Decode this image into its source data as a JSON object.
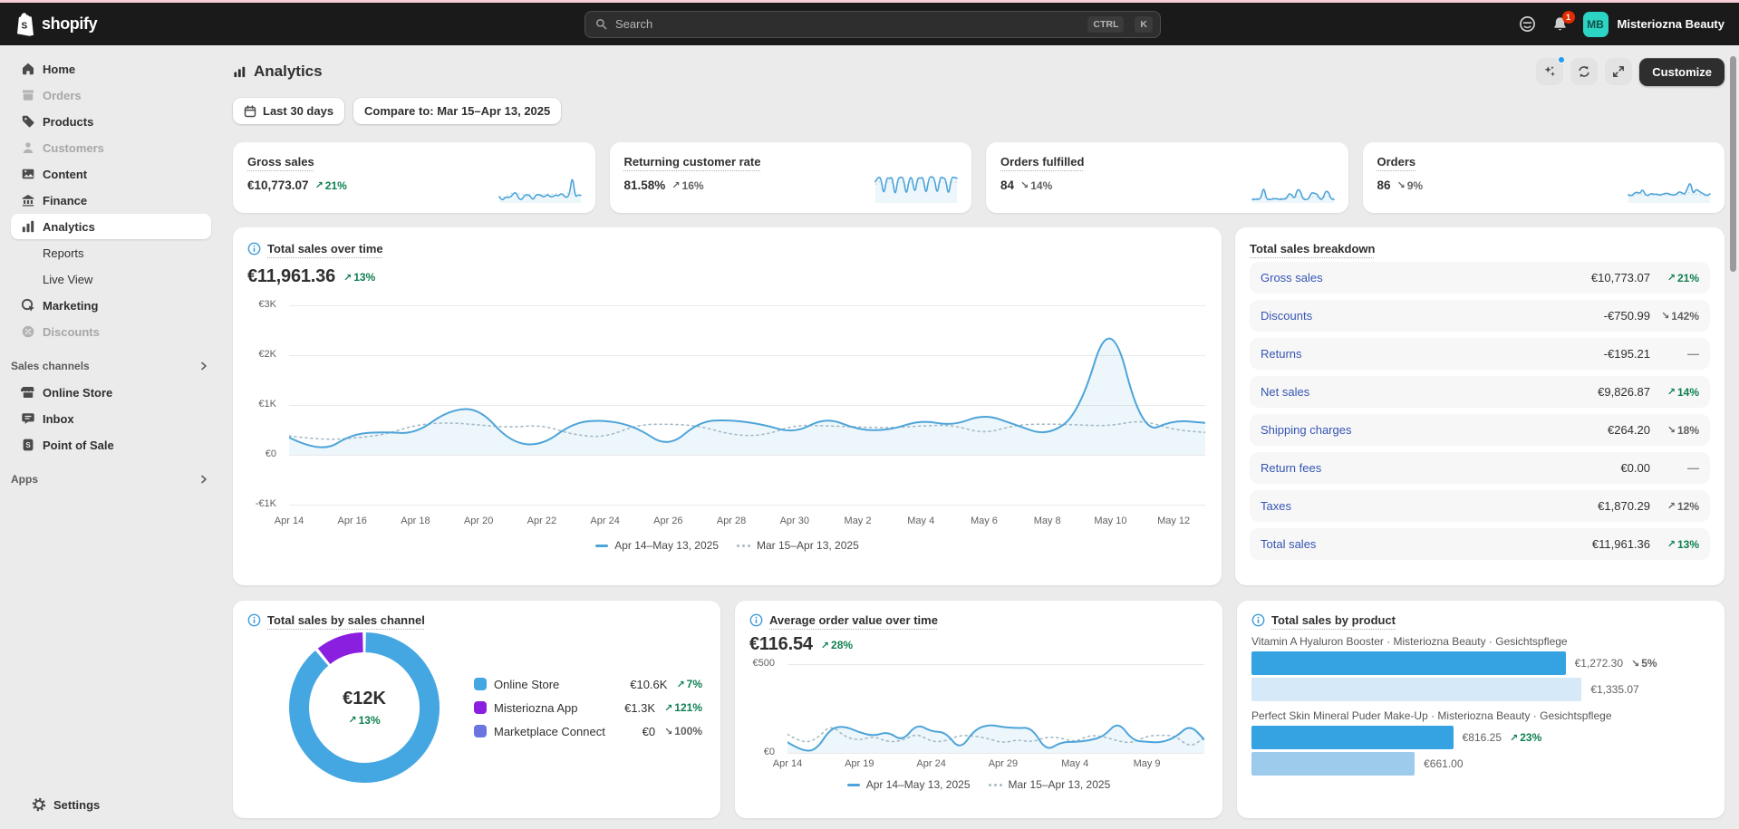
{
  "colors": {
    "topbar_bg": "#1a1a1a",
    "page_bg": "#ebebeb",
    "accent_teal": "#2bd4c3",
    "badge_red": "#e32c00",
    "chart_blue": "#4da4d9",
    "chart_area": "rgba(77,164,217,0.10)",
    "prev_line": "#a4bac6",
    "spark_prev": "#bcd9ec",
    "green": "#0e8050",
    "neutral": "#616161",
    "link_blue": "#3655b3",
    "notify_dot_blue": "#1f9bf0",
    "donut_blue": "#45a7e2",
    "donut_purple": "#8a1fe0",
    "donut_periwinkle": "#6b74e0",
    "bar_current": "#35a2e2",
    "bar_prev_pale": "#d6e9f8",
    "bar_prev_mid": "#9dcbec"
  },
  "topbar": {
    "logo_text": "shopify",
    "search_placeholder": "Search",
    "shortcut_ctrl": "CTRL",
    "shortcut_k": "K",
    "notification_count": "1",
    "avatar_initials": "MB",
    "store_name": "Misteriozna Beauty"
  },
  "sidebar": {
    "items": [
      {
        "label": "Home",
        "icon": "home-icon",
        "state": "default"
      },
      {
        "label": "Orders",
        "icon": "orders-icon",
        "state": "disabled"
      },
      {
        "label": "Products",
        "icon": "products-icon",
        "state": "default"
      },
      {
        "label": "Customers",
        "icon": "customers-icon",
        "state": "disabled"
      },
      {
        "label": "Content",
        "icon": "content-icon",
        "state": "default"
      },
      {
        "label": "Finance",
        "icon": "finance-icon",
        "state": "default"
      },
      {
        "label": "Analytics",
        "icon": "analytics-icon",
        "state": "active"
      },
      {
        "label": "Reports",
        "sub": true,
        "state": "default"
      },
      {
        "label": "Live View",
        "sub": true,
        "state": "default"
      },
      {
        "label": "Marketing",
        "icon": "marketing-icon",
        "state": "default"
      },
      {
        "label": "Discounts",
        "icon": "discounts-icon",
        "state": "disabled"
      }
    ],
    "sales_channels_header": "Sales channels",
    "channels": [
      {
        "label": "Online Store",
        "icon": "online-store-icon"
      },
      {
        "label": "Inbox",
        "icon": "inbox-icon"
      },
      {
        "label": "Point of Sale",
        "icon": "point-of-sale-icon"
      }
    ],
    "apps_header": "Apps",
    "settings_label": "Settings"
  },
  "page": {
    "title": "Analytics",
    "customize_label": "Customize",
    "date_filter": "Last 30 days",
    "compare_filter": "Compare to: Mar 15–Apr 13, 2025"
  },
  "kpis": [
    {
      "label": "Gross sales",
      "value": "€10,773.07",
      "delta": "21%",
      "direction": "up",
      "tone": "positive",
      "spark": [
        18,
        4,
        16,
        17,
        16,
        30,
        33,
        10,
        8,
        24,
        26,
        21,
        6,
        25,
        26,
        23,
        16,
        27,
        19,
        18,
        25,
        21,
        30,
        22,
        14,
        28,
        95,
        16,
        25,
        23
      ],
      "spark_prev": [
        20,
        16,
        18,
        22,
        30,
        32,
        30,
        28,
        30,
        20,
        18,
        30,
        31,
        29,
        20,
        19,
        30,
        29,
        28,
        27,
        29,
        30,
        21,
        30,
        31,
        30,
        29,
        35,
        25,
        22
      ]
    },
    {
      "label": "Returning customer rate",
      "value": "81.58%",
      "delta": "16%",
      "direction": "up",
      "tone": "neutral",
      "spark": [
        70,
        88,
        82,
        20,
        85,
        80,
        88,
        15,
        82,
        86,
        84,
        18,
        80,
        88,
        25,
        84,
        82,
        86,
        20,
        84,
        88,
        82,
        22,
        86,
        84,
        80,
        18,
        84,
        86,
        82
      ],
      "spark_prev": [
        60,
        70,
        68,
        50,
        70,
        66,
        70,
        45,
        68,
        70,
        69,
        48,
        66,
        70,
        52,
        69,
        68,
        70,
        48,
        69,
        70,
        68,
        50,
        70,
        69,
        66,
        48,
        69,
        70,
        68
      ]
    },
    {
      "label": "Orders fulfilled",
      "value": "84",
      "delta": "14%",
      "direction": "down",
      "tone": "neutral",
      "spark": [
        8,
        10,
        9,
        12,
        55,
        10,
        8,
        10,
        12,
        10,
        9,
        11,
        10,
        30,
        25,
        10,
        45,
        40,
        10,
        8,
        10,
        33,
        30,
        28,
        10,
        9,
        38,
        36,
        10,
        9
      ],
      "spark_prev": [
        12,
        14,
        13,
        15,
        20,
        14,
        12,
        14,
        15,
        14,
        13,
        14,
        14,
        18,
        17,
        14,
        20,
        19,
        14,
        12,
        14,
        18,
        17,
        17,
        14,
        13,
        18,
        18,
        14,
        13
      ]
    },
    {
      "label": "Orders",
      "value": "86",
      "delta": "9%",
      "direction": "down",
      "tone": "neutral",
      "spark": [
        25,
        20,
        30,
        35,
        28,
        45,
        25,
        22,
        30,
        26,
        28,
        24,
        26,
        30,
        30,
        26,
        24,
        26,
        36,
        32,
        26,
        48,
        70,
        26,
        45,
        38,
        32,
        26,
        22,
        28
      ],
      "spark_prev": [
        22,
        20,
        24,
        26,
        24,
        30,
        24,
        22,
        25,
        23,
        24,
        22,
        23,
        25,
        25,
        23,
        22,
        23,
        27,
        25,
        23,
        30,
        34,
        23,
        28,
        26,
        24,
        23,
        21,
        23
      ]
    }
  ],
  "legend_periods": [
    {
      "style": "solid",
      "label": "Apr 14–May 13, 2025"
    },
    {
      "style": "dotted",
      "label": "Mar 15–Apr 13, 2025"
    }
  ],
  "chart_data": [
    {
      "id": "total_sales_over_time",
      "type": "line",
      "title": "Total sales over time",
      "value": "€11,961.36",
      "delta": "13%",
      "direction": "up",
      "tone": "positive",
      "ylim": [
        -1000,
        3000
      ],
      "zero_frac": 0.75,
      "xtick_step": 2,
      "yticks": [
        "€3K",
        "€2K",
        "€1K",
        "€0",
        "-€1K"
      ],
      "xticks": [
        "Apr 14",
        "Apr 16",
        "Apr 18",
        "Apr 20",
        "Apr 22",
        "Apr 24",
        "Apr 26",
        "Apr 28",
        "Apr 30",
        "May 2",
        "May 4",
        "May 6",
        "May 8",
        "May 10",
        "May 12"
      ],
      "series": [
        {
          "name": "Apr 14–May 13, 2025",
          "style": "solid",
          "values": [
            350,
            30,
            420,
            460,
            420,
            880,
            950,
            250,
            180,
            650,
            700,
            560,
            140,
            680,
            700,
            610,
            430,
            760,
            500,
            490,
            700,
            580,
            820,
            600,
            380,
            820,
            2900,
            420,
            700,
            640
          ]
        },
        {
          "name": "Mar 15–Apr 13, 2025",
          "style": "dotted",
          "values": [
            380,
            300,
            330,
            400,
            600,
            650,
            600,
            550,
            600,
            400,
            350,
            600,
            620,
            580,
            400,
            380,
            600,
            580,
            560,
            540,
            580,
            600,
            420,
            600,
            620,
            600,
            580,
            700,
            500,
            450
          ]
        }
      ]
    },
    {
      "id": "sales_by_channel",
      "type": "donut",
      "title": "Total sales by sales channel",
      "center_value": "€12K",
      "center_delta": "13%",
      "direction": "up",
      "tone": "positive",
      "segments": [
        {
          "label": "Online Store",
          "value": 10600,
          "value_label": "€10.6K",
          "delta": "7%",
          "direction": "up",
          "tone": "positive",
          "color": "#45a7e2"
        },
        {
          "label": "Misteriozna App",
          "value": 1300,
          "value_label": "€1.3K",
          "delta": "121%",
          "direction": "up",
          "tone": "positive",
          "color": "#8a1fe0"
        },
        {
          "label": "Marketplace Connect",
          "value": 0,
          "value_label": "€0",
          "delta": "100%",
          "direction": "down",
          "tone": "neutral",
          "color": "#6b74e0"
        }
      ]
    },
    {
      "id": "aov_over_time",
      "type": "line",
      "title": "Average order value over time",
      "value": "€116.54",
      "delta": "28%",
      "direction": "up",
      "tone": "positive",
      "ylim": [
        0,
        500
      ],
      "zero_frac": 1,
      "xtick_step": 5,
      "yticks": [
        "€500",
        "€0"
      ],
      "xticks": [
        "Apr 14",
        "Apr 19",
        "Apr 24",
        "Apr 29",
        "May 4",
        "May 9"
      ],
      "series": [
        {
          "name": "Apr 14–May 13, 2025",
          "style": "solid",
          "values": [
            60,
            10,
            15,
            140,
            150,
            115,
            95,
            120,
            65,
            165,
            120,
            118,
            15,
            130,
            160,
            145,
            140,
            142,
            10,
            60,
            62,
            70,
            92,
            178,
            70,
            62,
            58,
            88,
            160,
            75
          ]
        },
        {
          "name": "Mar 15–Apr 13, 2025",
          "style": "dotted",
          "values": [
            105,
            55,
            75,
            160,
            90,
            70,
            95,
            60,
            70,
            110,
            62,
            66,
            100,
            95,
            80,
            55,
            75,
            60,
            90,
            85,
            60,
            100,
            92,
            66,
            55,
            95,
            100,
            96,
            30,
            85
          ]
        }
      ]
    },
    {
      "id": "sales_by_product",
      "type": "bar",
      "title": "Total sales by product",
      "products": [
        {
          "name": "Vitamin A Hyaluron Booster · Misteriozna Beauty · Gesichtspflege",
          "current": {
            "value_label": "€1,272.30",
            "pct": 68.5,
            "delta": "5%",
            "direction": "down",
            "tone": "neutral",
            "color": "#35a2e2"
          },
          "previous": {
            "value_label": "€1,335.07",
            "pct": 72,
            "color": "#d6e9f8"
          }
        },
        {
          "name": "Perfect Skin Mineral Puder Make-Up · Misteriozna Beauty · Gesichtspflege",
          "current": {
            "value_label": "€816.25",
            "pct": 44,
            "delta": "23%",
            "direction": "up",
            "tone": "positive",
            "color": "#35a2e2"
          },
          "previous": {
            "value_label": "€661.00",
            "pct": 35.6,
            "color": "#9dcbec"
          }
        }
      ]
    }
  ],
  "breakdown": {
    "title": "Total sales breakdown",
    "rows": [
      {
        "label": "Gross sales",
        "value": "€10,773.07",
        "delta": "21%",
        "direction": "up",
        "tone": "positive"
      },
      {
        "label": "Discounts",
        "value": "-€750.99",
        "delta": "142%",
        "direction": "down",
        "tone": "neutral"
      },
      {
        "label": "Returns",
        "value": "-€195.21",
        "delta": null
      },
      {
        "label": "Net sales",
        "value": "€9,826.87",
        "delta": "14%",
        "direction": "up",
        "tone": "positive"
      },
      {
        "label": "Shipping charges",
        "value": "€264.20",
        "delta": "18%",
        "direction": "down",
        "tone": "neutral"
      },
      {
        "label": "Return fees",
        "value": "€0.00",
        "delta": null
      },
      {
        "label": "Taxes",
        "value": "€1,870.29",
        "delta": "12%",
        "direction": "up",
        "tone": "neutral"
      },
      {
        "label": "Total sales",
        "value": "€11,961.36",
        "delta": "13%",
        "direction": "up",
        "tone": "positive"
      }
    ]
  }
}
